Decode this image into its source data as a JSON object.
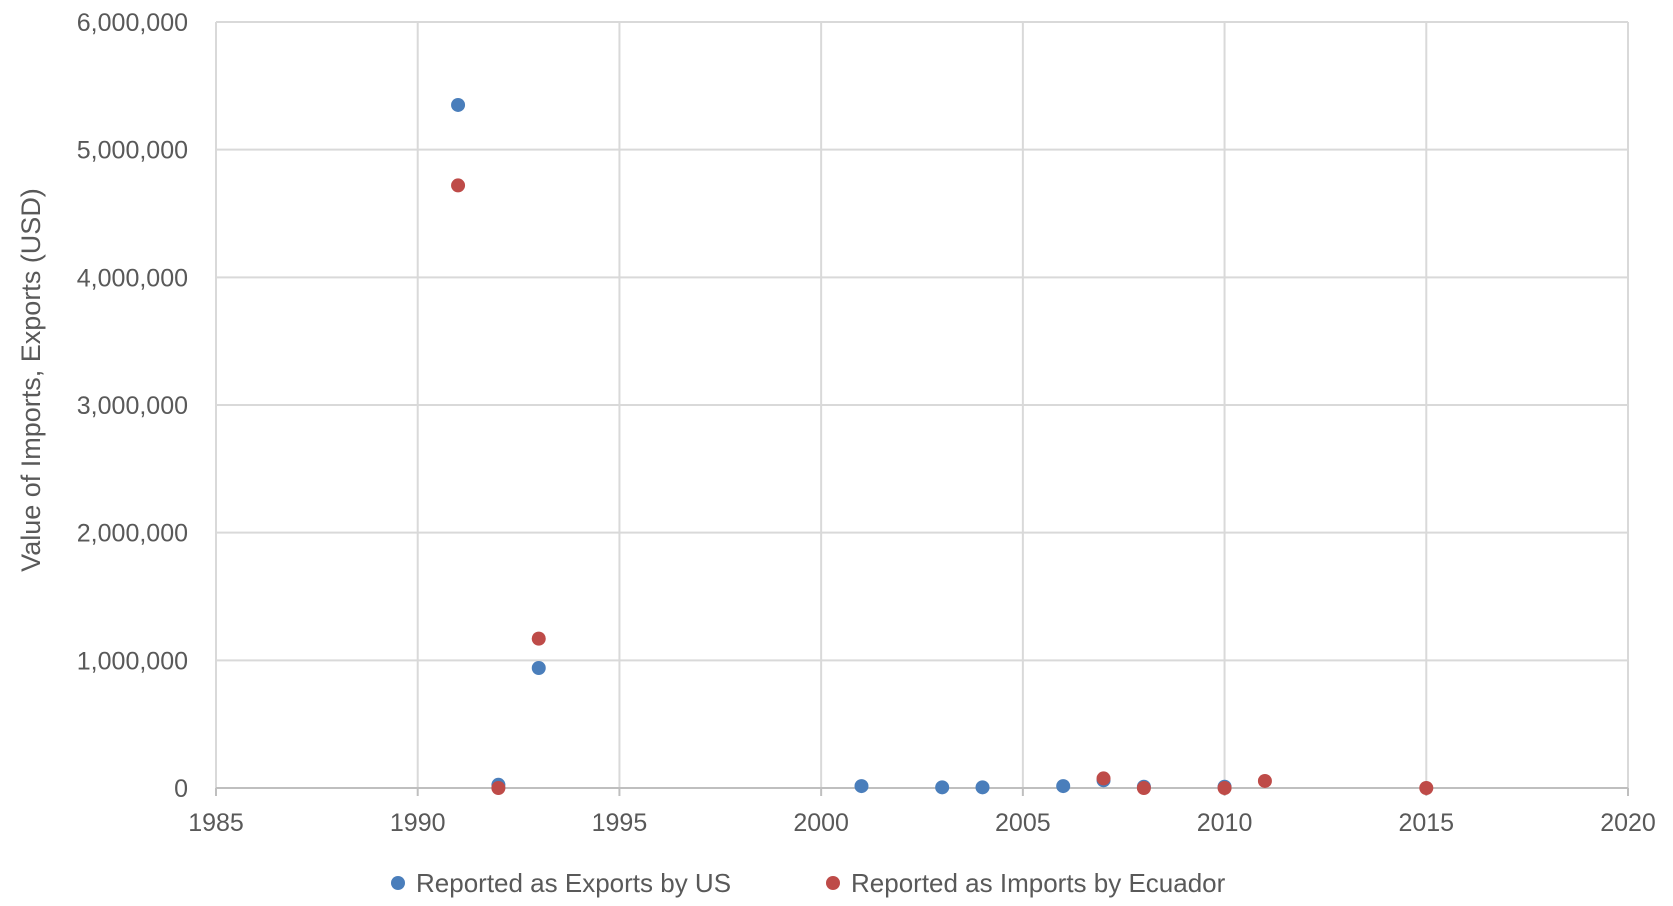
{
  "chart_data": {
    "type": "scatter",
    "title": "",
    "xlabel": "",
    "ylabel": "Value of Imports, Exports (USD)",
    "xlim": [
      1985,
      2020
    ],
    "ylim": [
      0,
      6000000
    ],
    "x_ticks": [
      1985,
      1990,
      1995,
      2000,
      2005,
      2010,
      2015,
      2020
    ],
    "y_ticks": [
      0,
      1000000,
      2000000,
      3000000,
      4000000,
      5000000,
      6000000
    ],
    "x_tick_labels": [
      "1985",
      "1990",
      "1995",
      "2000",
      "2005",
      "2010",
      "2015",
      "2020"
    ],
    "y_tick_labels": [
      "0",
      "1,000,000",
      "2,000,000",
      "3,000,000",
      "4,000,000",
      "5,000,000",
      "6,000,000"
    ],
    "grid": true,
    "legend_position": "bottom",
    "series": [
      {
        "name": "Reported as Exports by US",
        "color": "#4a7ebb",
        "points": [
          {
            "x": 1991,
            "y": 5350000
          },
          {
            "x": 1992,
            "y": 25000
          },
          {
            "x": 1993,
            "y": 940000
          },
          {
            "x": 2001,
            "y": 15000
          },
          {
            "x": 2003,
            "y": 5000
          },
          {
            "x": 2004,
            "y": 5000
          },
          {
            "x": 2006,
            "y": 15000
          },
          {
            "x": 2007,
            "y": 60000
          },
          {
            "x": 2008,
            "y": 10000
          },
          {
            "x": 2010,
            "y": 10000
          }
        ]
      },
      {
        "name": "Reported as Imports by Ecuador",
        "color": "#be4b48",
        "points": [
          {
            "x": 1991,
            "y": 4720000
          },
          {
            "x": 1992,
            "y": 0
          },
          {
            "x": 1993,
            "y": 1170000
          },
          {
            "x": 2007,
            "y": 75000
          },
          {
            "x": 2008,
            "y": 0
          },
          {
            "x": 2010,
            "y": 0
          },
          {
            "x": 2011,
            "y": 55000
          },
          {
            "x": 2015,
            "y": 0
          }
        ]
      }
    ]
  }
}
